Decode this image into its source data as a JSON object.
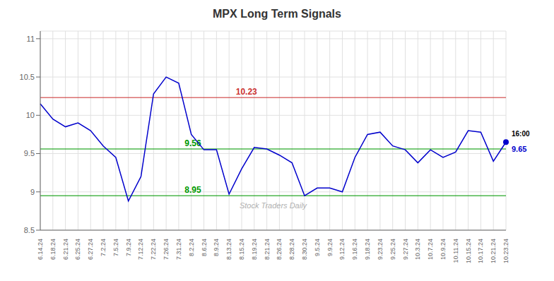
{
  "chart_data": {
    "type": "line",
    "title": "MPX Long Term Signals",
    "categories": [
      "6.14.24",
      "6.18.24",
      "6.21.24",
      "6.25.24",
      "6.27.24",
      "7.2.24",
      "7.5.24",
      "7.9.24",
      "7.12.24",
      "7.22.24",
      "7.26.24",
      "7.31.24",
      "8.2.24",
      "8.6.24",
      "8.9.24",
      "8.13.24",
      "8.15.24",
      "8.19.24",
      "8.21.24",
      "8.26.24",
      "8.28.24",
      "8.30.24",
      "9.5.24",
      "9.9.24",
      "9.12.24",
      "9.16.24",
      "9.18.24",
      "9.23.24",
      "9.25.24",
      "9.27.24",
      "10.3.24",
      "10.7.24",
      "10.9.24",
      "10.11.24",
      "10.15.24",
      "10.17.24",
      "10.21.24",
      "10.23.24"
    ],
    "values": [
      10.15,
      9.95,
      9.85,
      9.9,
      9.8,
      9.6,
      9.45,
      8.88,
      9.2,
      10.28,
      10.5,
      10.42,
      9.75,
      9.55,
      9.55,
      8.97,
      9.3,
      9.58,
      9.56,
      9.48,
      9.38,
      8.95,
      9.05,
      9.05,
      9.0,
      9.45,
      9.75,
      9.78,
      9.6,
      9.55,
      9.38,
      9.55,
      9.45,
      9.52,
      9.8,
      9.78,
      9.4,
      9.65
    ],
    "color": "#0000cc",
    "ylim": [
      8.5,
      11.1
    ],
    "yticks": [
      8.5,
      9,
      9.5,
      10,
      10.5,
      11
    ],
    "grid": true,
    "reference_lines": [
      {
        "y": 10.23,
        "label": "10.23",
        "color": "#cc3333"
      },
      {
        "y": 9.56,
        "label": "9.56",
        "color": "#009900"
      },
      {
        "y": 8.95,
        "label": "8.95",
        "color": "#009900"
      }
    ],
    "annotations": [
      {
        "text": "16:00",
        "x": "10.23.24",
        "y": 9.65
      },
      {
        "text": "9.65",
        "x": "10.23.24",
        "y": 9.65,
        "color": "#0000cc"
      }
    ],
    "watermark": "Stock Traders Daily"
  }
}
